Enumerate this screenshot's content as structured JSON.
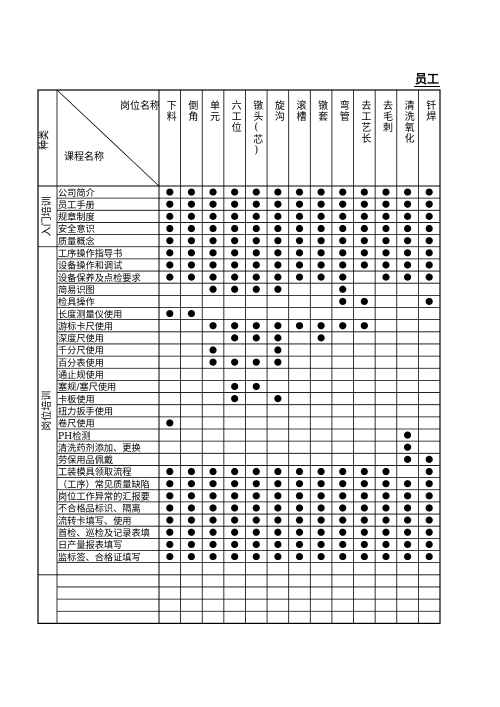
{
  "title": "员工",
  "header": {
    "position_label": "岗位名称",
    "course_label": "课程名称",
    "category_label": "种类"
  },
  "positions": [
    "下料",
    "倒角",
    "单元",
    "六工位",
    "镦头(芯)",
    "旋沟",
    "滚槽",
    "镦套",
    "弯管",
    "去工艺长",
    "去毛刺",
    "清洗氧化",
    "钎焊"
  ],
  "categories": [
    {
      "name": "入门培训",
      "rows": [
        0,
        4
      ]
    },
    {
      "name": "岗位培训",
      "rows": [
        5,
        31
      ]
    }
  ],
  "courses": [
    {
      "name": "公司简介",
      "marks": [
        1,
        1,
        1,
        1,
        1,
        1,
        1,
        1,
        1,
        1,
        1,
        1,
        1
      ]
    },
    {
      "name": "员工手册",
      "marks": [
        1,
        1,
        1,
        1,
        1,
        1,
        1,
        1,
        1,
        1,
        1,
        1,
        1
      ]
    },
    {
      "name": "规章制度",
      "marks": [
        1,
        1,
        1,
        1,
        1,
        1,
        1,
        1,
        1,
        1,
        1,
        1,
        1
      ]
    },
    {
      "name": "安全意识",
      "marks": [
        1,
        1,
        1,
        1,
        1,
        1,
        1,
        1,
        1,
        1,
        1,
        1,
        1
      ]
    },
    {
      "name": "质量概念",
      "marks": [
        1,
        1,
        1,
        1,
        1,
        1,
        1,
        1,
        1,
        1,
        1,
        1,
        1
      ]
    },
    {
      "name": "工序操作指导书",
      "marks": [
        1,
        1,
        1,
        1,
        1,
        1,
        1,
        1,
        1,
        1,
        1,
        1,
        1
      ]
    },
    {
      "name": "设备操作和调试",
      "marks": [
        1,
        1,
        1,
        1,
        1,
        1,
        1,
        1,
        1,
        1,
        1,
        1,
        1
      ]
    },
    {
      "name": "设备保养及点检要求",
      "marks": [
        1,
        1,
        1,
        1,
        1,
        1,
        1,
        1,
        1,
        0,
        1,
        1,
        1
      ]
    },
    {
      "name": "简易识图",
      "marks": [
        0,
        0,
        1,
        1,
        1,
        1,
        0,
        0,
        1,
        0,
        0,
        0,
        0
      ]
    },
    {
      "name": "检具操作",
      "marks": [
        0,
        0,
        0,
        0,
        0,
        0,
        0,
        0,
        1,
        1,
        0,
        0,
        1
      ]
    },
    {
      "name": "长度测量仪使用",
      "marks": [
        1,
        1,
        0,
        0,
        0,
        0,
        0,
        0,
        0,
        0,
        0,
        0,
        0
      ]
    },
    {
      "name": "游标卡尺使用",
      "marks": [
        0,
        0,
        1,
        1,
        1,
        1,
        1,
        1,
        1,
        1,
        0,
        0,
        0
      ]
    },
    {
      "name": "深度尺使用",
      "marks": [
        0,
        0,
        0,
        1,
        1,
        1,
        0,
        1,
        0,
        0,
        0,
        0,
        0
      ]
    },
    {
      "name": "千分尺使用",
      "marks": [
        0,
        0,
        1,
        0,
        0,
        1,
        0,
        0,
        0,
        0,
        0,
        0,
        0
      ]
    },
    {
      "name": "百分表使用",
      "marks": [
        0,
        0,
        1,
        1,
        1,
        1,
        0,
        0,
        0,
        0,
        0,
        0,
        0
      ]
    },
    {
      "name": "通止规使用",
      "marks": [
        0,
        0,
        0,
        0,
        0,
        0,
        0,
        0,
        0,
        0,
        0,
        0,
        0
      ]
    },
    {
      "name": "塞规/塞尺使用",
      "marks": [
        0,
        0,
        0,
        1,
        1,
        0,
        0,
        0,
        0,
        0,
        0,
        0,
        0
      ]
    },
    {
      "name": "卡板使用",
      "marks": [
        0,
        0,
        0,
        1,
        0,
        1,
        0,
        0,
        0,
        0,
        0,
        0,
        0
      ]
    },
    {
      "name": "扭力扳手使用",
      "marks": [
        0,
        0,
        0,
        0,
        0,
        0,
        0,
        0,
        0,
        0,
        0,
        0,
        0
      ]
    },
    {
      "name": "卷尺使用",
      "marks": [
        1,
        0,
        0,
        0,
        0,
        0,
        0,
        0,
        0,
        0,
        0,
        0,
        0
      ]
    },
    {
      "name": "PH检测",
      "marks": [
        0,
        0,
        0,
        0,
        0,
        0,
        0,
        0,
        0,
        0,
        0,
        1,
        0
      ]
    },
    {
      "name": "清洗药剂添加、更换",
      "marks": [
        0,
        0,
        0,
        0,
        0,
        0,
        0,
        0,
        0,
        0,
        0,
        1,
        0
      ]
    },
    {
      "name": "劳保用品佩戴",
      "marks": [
        0,
        0,
        0,
        0,
        0,
        0,
        0,
        0,
        0,
        0,
        0,
        1,
        1
      ]
    },
    {
      "name": "工装模具领取流程",
      "marks": [
        1,
        1,
        1,
        1,
        1,
        1,
        1,
        1,
        1,
        1,
        1,
        0,
        1
      ]
    },
    {
      "name": "（工序）常见质量缺陷",
      "marks": [
        1,
        1,
        1,
        1,
        1,
        1,
        1,
        1,
        1,
        1,
        1,
        1,
        1
      ]
    },
    {
      "name": "岗位工作异常的汇报要",
      "marks": [
        1,
        1,
        1,
        1,
        1,
        1,
        1,
        1,
        1,
        1,
        1,
        1,
        1
      ]
    },
    {
      "name": "不合格品标识、隔离",
      "marks": [
        1,
        1,
        1,
        1,
        1,
        1,
        1,
        1,
        1,
        1,
        1,
        1,
        1
      ]
    },
    {
      "name": "流转卡填写、使用",
      "marks": [
        1,
        1,
        1,
        1,
        1,
        1,
        1,
        1,
        1,
        1,
        1,
        1,
        1
      ]
    },
    {
      "name": "首检、巡检及记录表填",
      "marks": [
        1,
        1,
        1,
        1,
        1,
        1,
        1,
        1,
        1,
        1,
        1,
        1,
        1
      ]
    },
    {
      "name": "日产量报表填写",
      "marks": [
        1,
        1,
        1,
        1,
        1,
        1,
        1,
        1,
        1,
        1,
        1,
        1,
        1
      ]
    },
    {
      "name": "监标签、合格证填写",
      "marks": [
        1,
        1,
        1,
        1,
        1,
        1,
        1,
        1,
        1,
        1,
        1,
        1,
        1
      ]
    },
    {
      "name": "",
      "marks": [
        0,
        0,
        0,
        0,
        0,
        0,
        0,
        0,
        0,
        0,
        0,
        0,
        0
      ]
    }
  ],
  "blank_rows": 4,
  "colors": {
    "line": "#000000",
    "dot": "#000000"
  }
}
